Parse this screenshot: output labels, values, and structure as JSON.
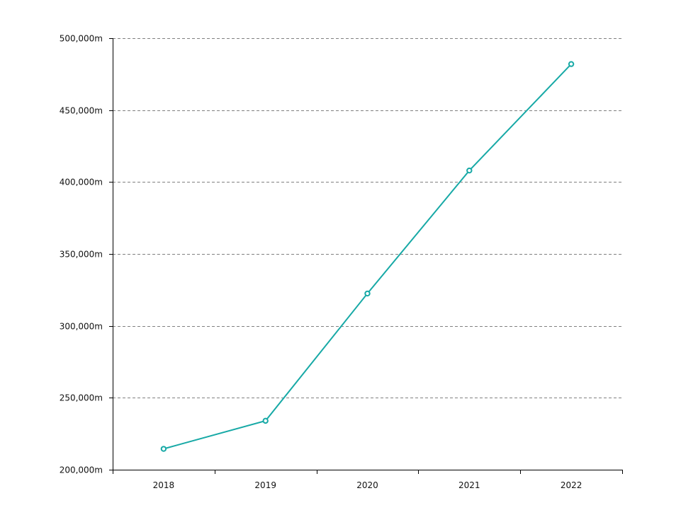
{
  "chart_data": {
    "type": "line",
    "title": "",
    "xlabel": "",
    "ylabel": "",
    "categories": [
      "2018",
      "2019",
      "2020",
      "2021",
      "2022"
    ],
    "series": [
      {
        "values": [
          214500,
          234000,
          322500,
          408000,
          482000
        ],
        "color": "#17a9a6"
      }
    ],
    "ylim": [
      200000,
      500000
    ],
    "y_ticks": [
      200000,
      250000,
      300000,
      350000,
      400000,
      450000,
      500000
    ],
    "y_tick_labels": [
      "200,000m",
      "250,000m",
      "300,000m",
      "350,000m",
      "400,000m",
      "450,000m",
      "500,000m"
    ],
    "grid": "horizontal-dashed",
    "legend": "none"
  }
}
